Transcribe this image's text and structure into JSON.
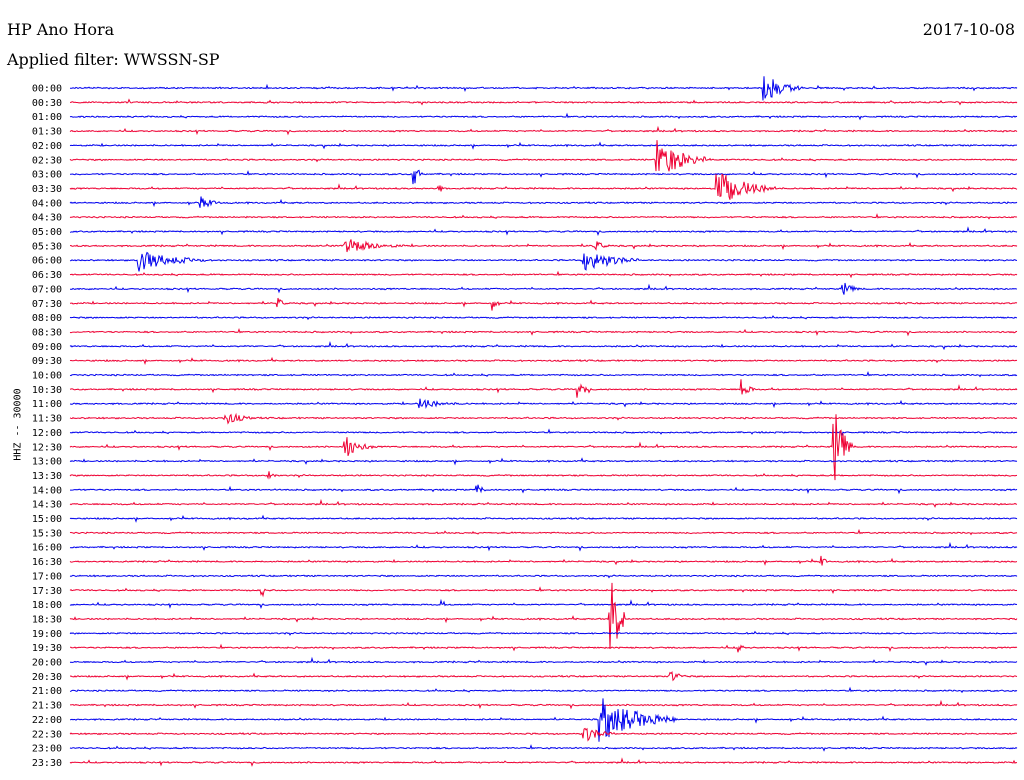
{
  "header": {
    "station": "HP Ano Hora",
    "filter_label": "Applied filter: WWSSN-SP",
    "date": "2017-10-08"
  },
  "colors": {
    "even_trace": "#0000ee",
    "odd_trace": "#ee0033"
  },
  "chart_data": {
    "type": "line",
    "title": "HP Ano Hora",
    "subtitle": "Applied filter: WWSSN-SP",
    "date": "2017-10-08",
    "ylabel": "HHZ -- 30000",
    "series_colors": [
      "#0000ee",
      "#ee0033"
    ],
    "rows": [
      "00:00",
      "00:30",
      "01:00",
      "01:30",
      "02:00",
      "02:30",
      "03:00",
      "03:30",
      "04:00",
      "04:30",
      "05:00",
      "05:30",
      "06:00",
      "06:30",
      "07:00",
      "07:30",
      "08:00",
      "08:30",
      "09:00",
      "09:30",
      "10:00",
      "10:30",
      "11:00",
      "11:30",
      "12:00",
      "12:30",
      "13:00",
      "13:30",
      "14:00",
      "14:30",
      "15:00",
      "15:30",
      "16:00",
      "16:30",
      "17:00",
      "17:30",
      "18:00",
      "18:30",
      "19:00",
      "19:30",
      "20:00",
      "20:30",
      "21:00",
      "21:30",
      "22:00",
      "22:30",
      "23:00",
      "23:30"
    ],
    "row_span_minutes": 30,
    "events": [
      {
        "row": "00:00",
        "minute": 22.0,
        "amplitude": 1.0,
        "duration": 1.2
      },
      {
        "row": "02:30",
        "minute": 18.6,
        "amplitude": 1.4,
        "duration": 1.7
      },
      {
        "row": "03:00",
        "minute": 10.9,
        "amplitude": 0.9,
        "duration": 0.3
      },
      {
        "row": "03:30",
        "minute": 20.5,
        "amplitude": 1.3,
        "duration": 1.9
      },
      {
        "row": "03:30",
        "minute": 11.7,
        "amplitude": 0.4,
        "duration": 0.2
      },
      {
        "row": "04:00",
        "minute": 4.1,
        "amplitude": 0.5,
        "duration": 0.8
      },
      {
        "row": "05:30",
        "minute": 8.7,
        "amplitude": 0.6,
        "duration": 1.9
      },
      {
        "row": "05:30",
        "minute": 16.6,
        "amplitude": 0.5,
        "duration": 0.5
      },
      {
        "row": "06:00",
        "minute": 2.2,
        "amplitude": 0.8,
        "duration": 2.1
      },
      {
        "row": "06:00",
        "minute": 16.3,
        "amplitude": 0.9,
        "duration": 1.7
      },
      {
        "row": "07:00",
        "minute": 24.5,
        "amplitude": 0.5,
        "duration": 0.6
      },
      {
        "row": "07:30",
        "minute": 6.6,
        "amplitude": 0.4,
        "duration": 0.3
      },
      {
        "row": "07:30",
        "minute": 13.4,
        "amplitude": 0.7,
        "duration": 0.2
      },
      {
        "row": "10:30",
        "minute": 16.1,
        "amplitude": 0.7,
        "duration": 0.4
      },
      {
        "row": "10:30",
        "minute": 21.3,
        "amplitude": 0.8,
        "duration": 0.4
      },
      {
        "row": "11:00",
        "minute": 11.1,
        "amplitude": 0.4,
        "duration": 1.4
      },
      {
        "row": "11:30",
        "minute": 4.9,
        "amplitude": 0.5,
        "duration": 1.1
      },
      {
        "row": "12:30",
        "minute": 8.7,
        "amplitude": 0.9,
        "duration": 0.9
      },
      {
        "row": "12:30",
        "minute": 24.2,
        "amplitude": 2.9,
        "duration": 0.6
      },
      {
        "row": "13:30",
        "minute": 6.3,
        "amplitude": 0.4,
        "duration": 0.3
      },
      {
        "row": "14:00",
        "minute": 12.9,
        "amplitude": 0.5,
        "duration": 0.3
      },
      {
        "row": "16:30",
        "minute": 23.8,
        "amplitude": 0.4,
        "duration": 0.3
      },
      {
        "row": "17:30",
        "minute": 6.1,
        "amplitude": 0.4,
        "duration": 0.2
      },
      {
        "row": "18:00",
        "minute": 11.8,
        "amplitude": 0.3,
        "duration": 0.2
      },
      {
        "row": "18:30",
        "minute": 17.1,
        "amplitude": 3.8,
        "duration": 0.5
      },
      {
        "row": "19:30",
        "minute": 21.2,
        "amplitude": 0.4,
        "duration": 0.2
      },
      {
        "row": "20:30",
        "minute": 19.0,
        "amplitude": 0.4,
        "duration": 0.7
      },
      {
        "row": "22:00",
        "minute": 16.8,
        "amplitude": 1.6,
        "duration": 2.4
      },
      {
        "row": "22:30",
        "minute": 16.3,
        "amplitude": 0.6,
        "duration": 1.0
      }
    ]
  }
}
